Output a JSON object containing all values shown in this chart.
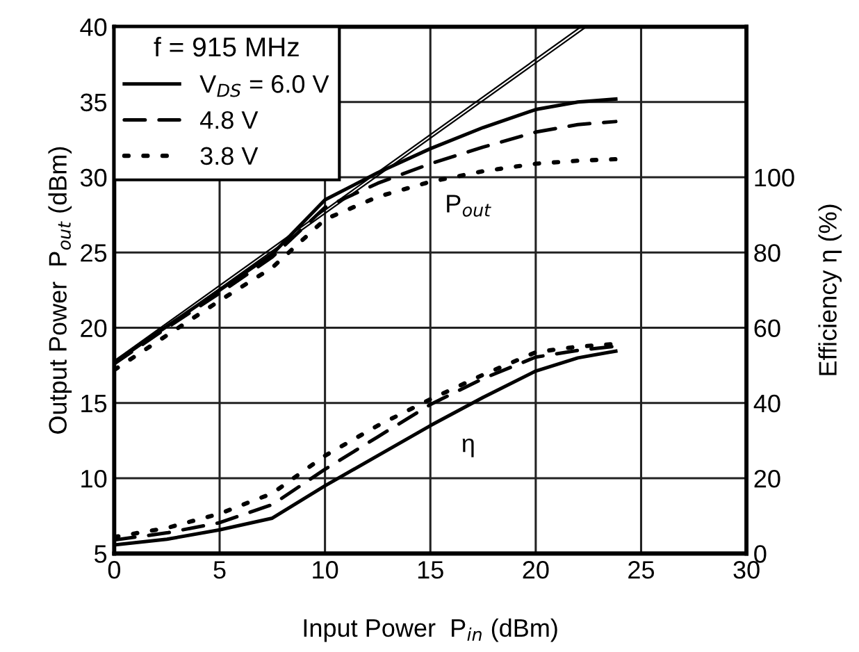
{
  "chart_data": {
    "type": "line",
    "xlabel": "Input Power  P$_{in}$ (dBm)",
    "ylabel": "Output Power  P$_{out}$ (dBm)",
    "y2label": "Efficiency η (%)",
    "legend_title": "f = 915 MHz",
    "x": [
      0,
      2.5,
      5,
      7.5,
      10,
      12.5,
      15,
      17.5,
      20,
      22,
      23.8
    ],
    "xlim": [
      0,
      30
    ],
    "xticks": [
      0,
      5,
      10,
      15,
      20,
      25,
      30
    ],
    "ylim": [
      5,
      40
    ],
    "yticks": [
      5,
      10,
      15,
      20,
      25,
      30,
      35,
      40
    ],
    "y2lim": [
      0,
      140
    ],
    "y2ticks": [
      0,
      20,
      40,
      60,
      80,
      100
    ],
    "grid": true,
    "legend": "top left",
    "series": [
      {
        "name": "V$_{DS}$ = 6.0 V",
        "color": "#000000",
        "line_style": "solid",
        "values": [
          17.7,
          20.1,
          22.5,
          24.9,
          28.5,
          30.3,
          31.9,
          33.3,
          34.5,
          35.0,
          35.2
        ]
      },
      {
        "name": "4.8 V",
        "color": "#000000",
        "line_style": "dashed",
        "values": [
          17.6,
          20.0,
          22.3,
          24.7,
          28.0,
          29.6,
          30.9,
          32.0,
          33.0,
          33.5,
          33.7
        ]
      },
      {
        "name": "3.8 V",
        "color": "#000000",
        "line_style": "dotted",
        "values": [
          17.2,
          19.5,
          21.8,
          24.0,
          27.2,
          28.7,
          29.7,
          30.4,
          30.9,
          31.1,
          31.2
        ]
      },
      {
        "color": "#000000",
        "line_style": "solid",
        "axis": "y2",
        "values": [
          2.3,
          3.8,
          6.3,
          9.4,
          18,
          26,
          34,
          41.5,
          48.5,
          52,
          53.8
        ]
      },
      {
        "color": "#000000",
        "line_style": "dashed",
        "axis": "y2",
        "values": [
          3.6,
          5.5,
          8.2,
          13,
          22.4,
          31,
          39.6,
          46.5,
          52.2,
          54,
          55.1
        ]
      },
      {
        "color": "#000000",
        "line_style": "dotted",
        "axis": "y2",
        "values": [
          4.4,
          6.8,
          10.6,
          16,
          26,
          34,
          41,
          47.5,
          53.5,
          55,
          55.7
        ]
      },
      {
        "color": "#000000",
        "line_style": "solid",
        "x": [
          0,
          22.15
        ],
        "values": [
          17.8,
          40
        ]
      },
      {
        "color": "#000000",
        "line_style": "solid",
        "x": [
          0,
          22.4
        ],
        "values": [
          17.6,
          40
        ]
      }
    ],
    "annotations": [
      "P$_{out}$",
      "η"
    ]
  }
}
